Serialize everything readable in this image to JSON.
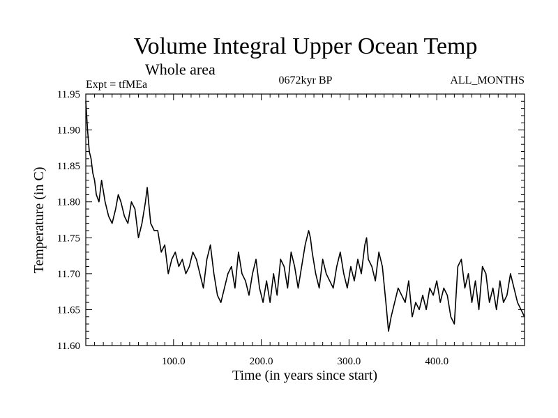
{
  "chart_data": {
    "type": "line",
    "title": "Volume Integral Upper Ocean Temp",
    "subtitle": "Whole area",
    "experiment": "Expt = tfMEa",
    "period": "0672kyr BP",
    "months": "ALL_MONTHS",
    "xlabel": "Time (in years since start)",
    "ylabel": "Temperature (in C)",
    "xlim": [
      0,
      500
    ],
    "ylim": [
      11.6,
      11.95
    ],
    "x_ticks": [
      100,
      200,
      300,
      400
    ],
    "x_tick_labels": [
      "100.0",
      "200.0",
      "300.0",
      "400.0"
    ],
    "y_ticks": [
      11.6,
      11.65,
      11.7,
      11.75,
      11.8,
      11.85,
      11.9,
      11.95
    ],
    "y_tick_labels": [
      "11.60",
      "11.65",
      "11.70",
      "11.75",
      "11.80",
      "11.85",
      "11.90",
      "11.95"
    ],
    "grid": false,
    "series": [
      {
        "x": [
          0,
          2,
          4,
          6,
          8,
          10,
          12,
          15,
          18,
          22,
          26,
          30,
          34,
          37,
          40,
          44,
          48,
          52,
          56,
          60,
          64,
          68,
          70,
          74,
          78,
          82,
          86,
          90,
          94,
          98,
          102,
          106,
          110,
          114,
          118,
          122,
          126,
          130,
          134,
          138,
          142,
          146,
          150,
          154,
          158,
          162,
          166,
          170,
          174,
          178,
          182,
          186,
          190,
          194,
          198,
          202,
          206,
          210,
          214,
          218,
          222,
          226,
          230,
          234,
          238,
          242,
          246,
          250,
          254,
          256,
          258,
          262,
          266,
          270,
          274,
          278,
          282,
          286,
          290,
          294,
          298,
          302,
          306,
          310,
          314,
          318,
          320,
          322,
          326,
          330,
          334,
          338,
          342,
          345,
          348,
          352,
          356,
          360,
          364,
          368,
          372,
          376,
          380,
          384,
          388,
          392,
          396,
          400,
          404,
          408,
          412,
          416,
          420,
          424,
          428,
          432,
          436,
          440,
          444,
          448,
          452,
          456,
          460,
          464,
          468,
          472,
          476,
          480,
          484,
          488,
          492,
          496,
          500
        ],
        "y": [
          11.94,
          11.9,
          11.87,
          11.86,
          11.84,
          11.83,
          11.81,
          11.8,
          11.83,
          11.8,
          11.78,
          11.77,
          11.79,
          11.81,
          11.8,
          11.78,
          11.77,
          11.8,
          11.79,
          11.75,
          11.77,
          11.8,
          11.82,
          11.77,
          11.76,
          11.76,
          11.73,
          11.74,
          11.7,
          11.72,
          11.73,
          11.71,
          11.72,
          11.7,
          11.71,
          11.73,
          11.72,
          11.7,
          11.68,
          11.72,
          11.74,
          11.7,
          11.67,
          11.66,
          11.68,
          11.7,
          11.71,
          11.68,
          11.73,
          11.7,
          11.69,
          11.67,
          11.7,
          11.72,
          11.68,
          11.66,
          11.69,
          11.66,
          11.7,
          11.67,
          11.72,
          11.71,
          11.68,
          11.73,
          11.71,
          11.68,
          11.71,
          11.74,
          11.76,
          11.75,
          11.73,
          11.7,
          11.68,
          11.72,
          11.7,
          11.69,
          11.68,
          11.71,
          11.73,
          11.7,
          11.68,
          11.71,
          11.69,
          11.72,
          11.7,
          11.74,
          11.75,
          11.72,
          11.71,
          11.69,
          11.73,
          11.71,
          11.66,
          11.62,
          11.64,
          11.66,
          11.68,
          11.67,
          11.66,
          11.69,
          11.64,
          11.66,
          11.65,
          11.67,
          11.65,
          11.68,
          11.67,
          11.69,
          11.66,
          11.68,
          11.67,
          11.64,
          11.63,
          11.71,
          11.72,
          11.68,
          11.7,
          11.66,
          11.69,
          11.65,
          11.71,
          11.7,
          11.66,
          11.68,
          11.65,
          11.69,
          11.66,
          11.67,
          11.7,
          11.68,
          11.66,
          11.65,
          11.64
        ]
      }
    ]
  }
}
